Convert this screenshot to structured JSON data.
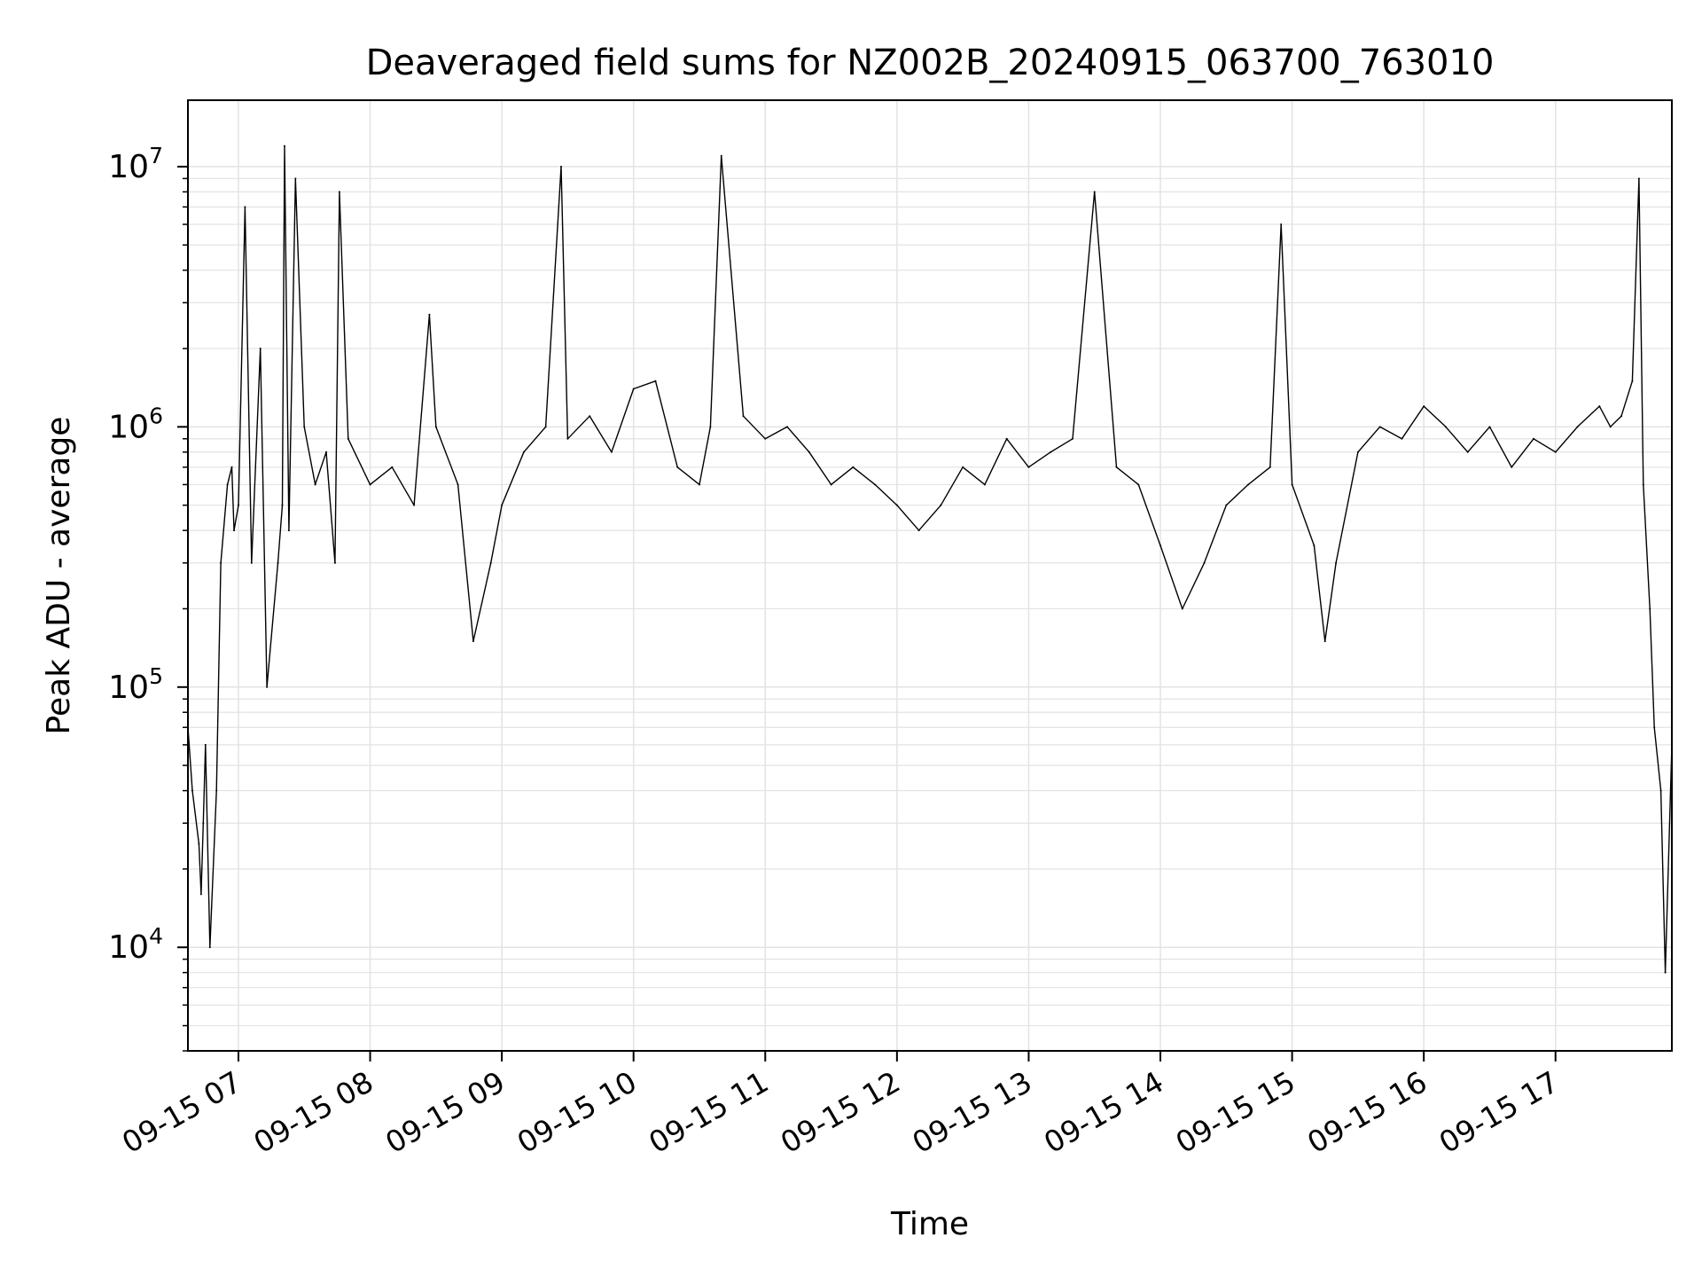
{
  "chart_data": {
    "type": "line",
    "title": "Deaveraged field sums for NZ002B_20240915_063700_763010",
    "xlabel": "Time",
    "ylabel": "Peak ADU - average",
    "y_scale": "log",
    "ylim": [
      4000,
      18000000
    ],
    "xlim": [
      "2024-09-15 06:37",
      "2024-09-15 17:53"
    ],
    "grid": true,
    "line_color": "#000000",
    "x_ticks": [
      {
        "value": "2024-09-15 07:00",
        "label": "09-15 07"
      },
      {
        "value": "2024-09-15 08:00",
        "label": "09-15 08"
      },
      {
        "value": "2024-09-15 09:00",
        "label": "09-15 09"
      },
      {
        "value": "2024-09-15 10:00",
        "label": "09-15 10"
      },
      {
        "value": "2024-09-15 11:00",
        "label": "09-15 11"
      },
      {
        "value": "2024-09-15 12:00",
        "label": "09-15 12"
      },
      {
        "value": "2024-09-15 13:00",
        "label": "09-15 13"
      },
      {
        "value": "2024-09-15 14:00",
        "label": "09-15 14"
      },
      {
        "value": "2024-09-15 15:00",
        "label": "09-15 15"
      },
      {
        "value": "2024-09-15 16:00",
        "label": "09-15 16"
      },
      {
        "value": "2024-09-15 17:00",
        "label": "09-15 17"
      }
    ],
    "y_ticks": [
      {
        "value": 10000,
        "base": "10",
        "exp": "4"
      },
      {
        "value": 100000,
        "base": "10",
        "exp": "5"
      },
      {
        "value": 1000000,
        "base": "10",
        "exp": "6"
      },
      {
        "value": 10000000,
        "base": "10",
        "exp": "7"
      }
    ],
    "series": [
      {
        "x": [
          "2024-09-15 06:37",
          "2024-09-15 06:39",
          "2024-09-15 06:42",
          "2024-09-15 06:43",
          "2024-09-15 06:44",
          "2024-09-15 06:45",
          "2024-09-15 06:47",
          "2024-09-15 06:50",
          "2024-09-15 06:52",
          "2024-09-15 06:55",
          "2024-09-15 06:57",
          "2024-09-15 06:58",
          "2024-09-15 07:00",
          "2024-09-15 07:03",
          "2024-09-15 07:06",
          "2024-09-15 07:10",
          "2024-09-15 07:13",
          "2024-09-15 07:18",
          "2024-09-15 07:20",
          "2024-09-15 07:21",
          "2024-09-15 07:23",
          "2024-09-15 07:26",
          "2024-09-15 07:30",
          "2024-09-15 07:35",
          "2024-09-15 07:40",
          "2024-09-15 07:44",
          "2024-09-15 07:46",
          "2024-09-15 07:50",
          "2024-09-15 08:00",
          "2024-09-15 08:10",
          "2024-09-15 08:20",
          "2024-09-15 08:27",
          "2024-09-15 08:30",
          "2024-09-15 08:40",
          "2024-09-15 08:47",
          "2024-09-15 08:55",
          "2024-09-15 09:00",
          "2024-09-15 09:10",
          "2024-09-15 09:20",
          "2024-09-15 09:27",
          "2024-09-15 09:30",
          "2024-09-15 09:40",
          "2024-09-15 09:50",
          "2024-09-15 10:00",
          "2024-09-15 10:10",
          "2024-09-15 10:20",
          "2024-09-15 10:30",
          "2024-09-15 10:35",
          "2024-09-15 10:40",
          "2024-09-15 10:50",
          "2024-09-15 11:00",
          "2024-09-15 11:10",
          "2024-09-15 11:20",
          "2024-09-15 11:30",
          "2024-09-15 11:40",
          "2024-09-15 11:50",
          "2024-09-15 12:00",
          "2024-09-15 12:10",
          "2024-09-15 12:20",
          "2024-09-15 12:30",
          "2024-09-15 12:40",
          "2024-09-15 12:50",
          "2024-09-15 13:00",
          "2024-09-15 13:10",
          "2024-09-15 13:20",
          "2024-09-15 13:30",
          "2024-09-15 13:40",
          "2024-09-15 13:50",
          "2024-09-15 14:00",
          "2024-09-15 14:10",
          "2024-09-15 14:20",
          "2024-09-15 14:30",
          "2024-09-15 14:40",
          "2024-09-15 14:50",
          "2024-09-15 14:55",
          "2024-09-15 15:00",
          "2024-09-15 15:10",
          "2024-09-15 15:15",
          "2024-09-15 15:20",
          "2024-09-15 15:30",
          "2024-09-15 15:40",
          "2024-09-15 15:50",
          "2024-09-15 16:00",
          "2024-09-15 16:10",
          "2024-09-15 16:20",
          "2024-09-15 16:30",
          "2024-09-15 16:40",
          "2024-09-15 16:50",
          "2024-09-15 17:00",
          "2024-09-15 17:10",
          "2024-09-15 17:20",
          "2024-09-15 17:25",
          "2024-09-15 17:30",
          "2024-09-15 17:35",
          "2024-09-15 17:38",
          "2024-09-15 17:40",
          "2024-09-15 17:43",
          "2024-09-15 17:45",
          "2024-09-15 17:48",
          "2024-09-15 17:50",
          "2024-09-15 17:53"
        ],
        "y": [
          70000,
          40000,
          25000,
          16000,
          30000,
          60000,
          10000,
          40000,
          300000,
          600000,
          700000,
          400000,
          500000,
          7000000,
          300000,
          2000000,
          100000,
          300000,
          500000,
          12000000,
          400000,
          9000000,
          1000000,
          600000,
          800000,
          300000,
          8000000,
          900000,
          600000,
          700000,
          500000,
          2700000,
          1000000,
          600000,
          150000,
          300000,
          500000,
          800000,
          1000000,
          10000000,
          900000,
          1100000,
          800000,
          1400000,
          1500000,
          700000,
          600000,
          1000000,
          11000000,
          1100000,
          900000,
          1000000,
          800000,
          600000,
          700000,
          600000,
          500000,
          400000,
          500000,
          700000,
          600000,
          900000,
          700000,
          800000,
          900000,
          8000000,
          700000,
          600000,
          350000,
          200000,
          300000,
          500000,
          600000,
          700000,
          6000000,
          600000,
          350000,
          150000,
          300000,
          800000,
          1000000,
          900000,
          1200000,
          1000000,
          800000,
          1000000,
          700000,
          900000,
          800000,
          1000000,
          1200000,
          1000000,
          1100000,
          1500000,
          9000000,
          600000,
          200000,
          70000,
          40000,
          8000,
          60000
        ]
      }
    ]
  }
}
